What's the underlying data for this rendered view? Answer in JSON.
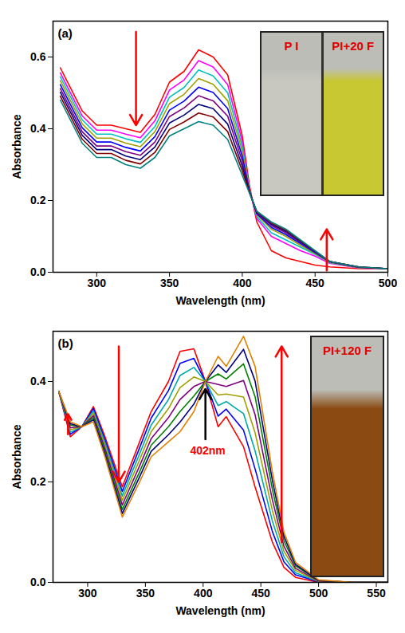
{
  "chart_data": [
    {
      "type": "line",
      "title": "(a)",
      "xlabel": "Wavelength (nm)",
      "ylabel": "Absorbance",
      "xlim": [
        270,
        500
      ],
      "xticks": [
        300,
        350,
        400,
        450,
        500
      ],
      "ylim": [
        0,
        0.7
      ],
      "yticks": [
        {
          "value": 0,
          "label": "0.0"
        },
        0.2,
        0.4,
        0.6
      ],
      "x": [
        275,
        290,
        300,
        310,
        320,
        330,
        340,
        350,
        360,
        370,
        380,
        390,
        400,
        405,
        410,
        420,
        430,
        440,
        450,
        460,
        480,
        500
      ],
      "series": [
        {
          "color": "#ff0000",
          "values": [
            0.57,
            0.45,
            0.41,
            0.41,
            0.4,
            0.39,
            0.44,
            0.53,
            0.56,
            0.62,
            0.6,
            0.55,
            0.38,
            0.24,
            0.14,
            0.06,
            0.04,
            0.03,
            0.02,
            0.015,
            0.01,
            0.01
          ]
        },
        {
          "color": "#ff00ff",
          "values": [
            0.556,
            0.436,
            0.396,
            0.396,
            0.385,
            0.375,
            0.422,
            0.508,
            0.536,
            0.59,
            0.572,
            0.523,
            0.364,
            0.23,
            0.15,
            0.1,
            0.08,
            0.06,
            0.045,
            0.025,
            0.012,
            0.01
          ]
        },
        {
          "color": "#00c0c0",
          "values": [
            0.545,
            0.425,
            0.385,
            0.385,
            0.372,
            0.362,
            0.406,
            0.488,
            0.515,
            0.564,
            0.547,
            0.5,
            0.349,
            0.23,
            0.155,
            0.11,
            0.09,
            0.07,
            0.05,
            0.027,
            0.013,
            0.01
          ]
        },
        {
          "color": "#a0a000",
          "values": [
            0.534,
            0.414,
            0.374,
            0.374,
            0.36,
            0.35,
            0.392,
            0.47,
            0.496,
            0.54,
            0.524,
            0.478,
            0.336,
            0.228,
            0.16,
            0.12,
            0.1,
            0.075,
            0.052,
            0.028,
            0.013,
            0.01
          ]
        },
        {
          "color": "#0000ff",
          "values": [
            0.523,
            0.403,
            0.363,
            0.363,
            0.348,
            0.338,
            0.378,
            0.452,
            0.477,
            0.516,
            0.501,
            0.456,
            0.323,
            0.226,
            0.163,
            0.125,
            0.105,
            0.08,
            0.055,
            0.029,
            0.014,
            0.01
          ]
        },
        {
          "color": "#800080",
          "values": [
            0.512,
            0.392,
            0.352,
            0.352,
            0.336,
            0.326,
            0.363,
            0.434,
            0.458,
            0.492,
            0.478,
            0.435,
            0.31,
            0.224,
            0.166,
            0.13,
            0.11,
            0.083,
            0.057,
            0.03,
            0.014,
            0.01
          ]
        },
        {
          "color": "#000080",
          "values": [
            0.502,
            0.382,
            0.342,
            0.342,
            0.324,
            0.314,
            0.349,
            0.416,
            0.438,
            0.468,
            0.456,
            0.413,
            0.296,
            0.222,
            0.168,
            0.134,
            0.114,
            0.086,
            0.058,
            0.03,
            0.015,
            0.01
          ]
        },
        {
          "color": "#800000",
          "values": [
            0.491,
            0.371,
            0.331,
            0.331,
            0.312,
            0.302,
            0.334,
            0.398,
            0.419,
            0.444,
            0.433,
            0.392,
            0.283,
            0.221,
            0.169,
            0.137,
            0.117,
            0.088,
            0.059,
            0.03,
            0.015,
            0.01
          ]
        },
        {
          "color": "#008080",
          "values": [
            0.48,
            0.36,
            0.32,
            0.32,
            0.3,
            0.29,
            0.32,
            0.38,
            0.4,
            0.42,
            0.41,
            0.37,
            0.27,
            0.22,
            0.17,
            0.14,
            0.12,
            0.09,
            0.06,
            0.03,
            0.015,
            0.01
          ]
        }
      ],
      "arrows": [
        {
          "x": 327,
          "y1": 0.67,
          "y2": 0.41,
          "color": "#ff0000"
        },
        {
          "x": 458,
          "y1": 0.005,
          "y2": 0.12,
          "color": "#ff0000"
        }
      ],
      "annotations": [],
      "inset": {
        "labels": [
          "P I",
          "PI+20 F"
        ],
        "colors": [
          "#c8c8c0",
          "#c8c832"
        ]
      }
    },
    {
      "type": "line",
      "title": "(b)",
      "xlabel": "Wavelength (nm)",
      "ylabel": "Absorbance",
      "xlim": [
        270,
        560
      ],
      "xticks": [
        300,
        350,
        400,
        450,
        500,
        550
      ],
      "ylim": [
        0,
        0.5
      ],
      "yticks": [
        {
          "value": 0,
          "label": "0.0"
        },
        0.2,
        0.4
      ],
      "x": [
        275,
        285,
        295,
        305,
        315,
        330,
        345,
        355,
        370,
        380,
        392,
        402,
        413,
        420,
        435,
        445,
        460,
        470,
        480,
        500,
        530,
        560
      ],
      "series": [
        {
          "color": "#ff0000",
          "values": [
            0.38,
            0.29,
            0.31,
            0.35,
            0.29,
            0.19,
            0.28,
            0.34,
            0.4,
            0.46,
            0.465,
            0.4,
            0.31,
            0.33,
            0.27,
            0.19,
            0.08,
            0.03,
            0.01,
            0,
            0,
            0
          ]
        },
        {
          "color": "#0000ff",
          "values": [
            0.38,
            0.295,
            0.31,
            0.346,
            0.284,
            0.181,
            0.268,
            0.327,
            0.382,
            0.436,
            0.446,
            0.4,
            0.331,
            0.345,
            0.303,
            0.226,
            0.101,
            0.041,
            0.015,
            0.001,
            0,
            0
          ]
        },
        {
          "color": "#00aaaa",
          "values": [
            0.38,
            0.299,
            0.31,
            0.341,
            0.278,
            0.172,
            0.256,
            0.313,
            0.364,
            0.412,
            0.428,
            0.4,
            0.352,
            0.36,
            0.336,
            0.262,
            0.122,
            0.051,
            0.019,
            0.002,
            0,
            0
          ]
        },
        {
          "color": "#a0a000",
          "values": [
            0.38,
            0.304,
            0.31,
            0.337,
            0.272,
            0.163,
            0.244,
            0.3,
            0.346,
            0.388,
            0.409,
            0.4,
            0.373,
            0.375,
            0.369,
            0.298,
            0.143,
            0.062,
            0.024,
            0.002,
            0,
            0
          ]
        },
        {
          "color": "#800080",
          "values": [
            0.38,
            0.308,
            0.31,
            0.332,
            0.266,
            0.154,
            0.232,
            0.286,
            0.328,
            0.364,
            0.39,
            0.4,
            0.394,
            0.39,
            0.402,
            0.334,
            0.164,
            0.072,
            0.028,
            0.003,
            0,
            0
          ]
        },
        {
          "color": "#008000",
          "values": [
            0.38,
            0.313,
            0.31,
            0.328,
            0.26,
            0.145,
            0.22,
            0.273,
            0.31,
            0.34,
            0.371,
            0.4,
            0.415,
            0.405,
            0.435,
            0.37,
            0.185,
            0.083,
            0.033,
            0.004,
            0,
            0
          ]
        },
        {
          "color": "#000080",
          "values": [
            0.38,
            0.316,
            0.31,
            0.324,
            0.255,
            0.137,
            0.21,
            0.261,
            0.294,
            0.319,
            0.355,
            0.4,
            0.433,
            0.418,
            0.464,
            0.401,
            0.203,
            0.092,
            0.036,
            0.004,
            0,
            0
          ]
        },
        {
          "color": "#e08000",
          "values": [
            0.38,
            0.32,
            0.31,
            0.32,
            0.25,
            0.13,
            0.2,
            0.25,
            0.28,
            0.3,
            0.34,
            0.4,
            0.45,
            0.43,
            0.49,
            0.43,
            0.22,
            0.1,
            0.04,
            0.005,
            0,
            0
          ]
        }
      ],
      "arrows": [
        {
          "x": 283,
          "y1": 0.295,
          "y2": 0.335,
          "color": "#ff0000"
        },
        {
          "x": 327,
          "y1": 0.47,
          "y2": 0.2,
          "color": "#ff0000"
        },
        {
          "x": 468,
          "y1": 0.08,
          "y2": 0.47,
          "color": "#ff0000"
        },
        {
          "x": 402,
          "y1": 0.285,
          "y2": 0.385,
          "color": "#000000"
        }
      ],
      "annotations": [
        {
          "text": "402nm",
          "x": 404,
          "y": 0.262,
          "color": "#ff0000"
        }
      ],
      "inset": {
        "labels": [
          "PI+120 F"
        ],
        "colors": [
          "#8a4a12"
        ]
      }
    }
  ]
}
